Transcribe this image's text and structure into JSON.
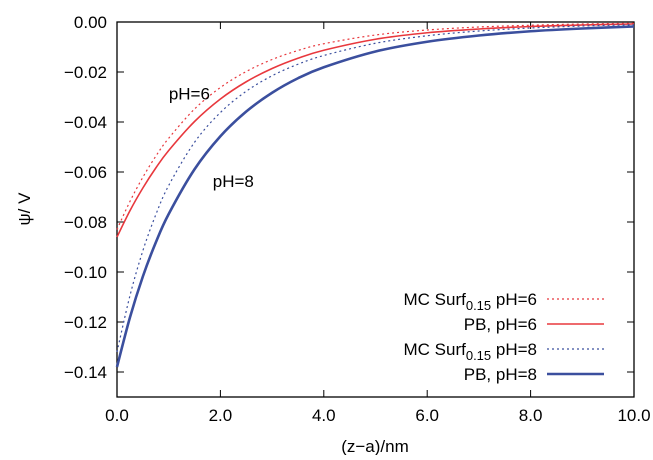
{
  "chart_data": {
    "type": "line",
    "xlabel": "(z−a)/nm",
    "ylabel": "ψ/ V",
    "xlim": [
      0.0,
      10.0
    ],
    "ylim": [
      -0.15,
      0.0
    ],
    "xticks": [
      0.0,
      2.0,
      4.0,
      6.0,
      8.0,
      10.0
    ],
    "xtick_labels": [
      "0.0",
      "2.0",
      "4.0",
      "6.0",
      "8.0",
      "10.0"
    ],
    "yticks": [
      0.0,
      -0.02,
      -0.04,
      -0.06,
      -0.08,
      -0.1,
      -0.12,
      -0.14
    ],
    "ytick_labels": [
      "0.00",
      "−0.02",
      "−0.04",
      "−0.06",
      "−0.08",
      "−0.10",
      "−0.12",
      "−0.14"
    ],
    "grid": false,
    "legend_position": "bottom-right",
    "annotations": [
      {
        "text": "pH=6",
        "x": 1.4,
        "y": -0.0285
      },
      {
        "text": "pH=8",
        "x": 2.25,
        "y": -0.0635
      }
    ],
    "series": [
      {
        "name": "MC Surf0.15 pH=6",
        "legend_main": "MC Surf",
        "legend_sub": "0.15",
        "legend_tail": " pH=6",
        "color": "#e8383d",
        "dash": "dotted",
        "width": 1.2,
        "x": [
          0,
          0.25,
          0.5,
          0.75,
          1,
          1.5,
          2,
          2.5,
          3,
          3.5,
          4,
          5,
          6,
          7,
          8,
          9,
          10
        ],
        "y": [
          -0.083,
          -0.0718,
          -0.0621,
          -0.0537,
          -0.0465,
          -0.0348,
          -0.0262,
          -0.0198,
          -0.015,
          -0.0114,
          -0.0087,
          -0.0052,
          -0.0032,
          -0.002,
          -0.0013,
          -0.0008,
          -0.0005
        ]
      },
      {
        "name": "PB, pH=6",
        "legend_main": "PB, pH=6",
        "legend_sub": "",
        "legend_tail": "",
        "color": "#e8383d",
        "dash": "solid",
        "width": 1.6,
        "x": [
          0,
          0.25,
          0.5,
          0.75,
          1,
          1.5,
          2,
          2.5,
          3,
          3.5,
          4,
          5,
          6,
          7,
          8,
          9,
          10
        ],
        "y": [
          -0.086,
          -0.0755,
          -0.0664,
          -0.0584,
          -0.0514,
          -0.0398,
          -0.0308,
          -0.0239,
          -0.0186,
          -0.0145,
          -0.0113,
          -0.0069,
          -0.0043,
          -0.0028,
          -0.0018,
          -0.0012,
          -0.0008
        ]
      },
      {
        "name": "MC Surf0.15 pH=8",
        "legend_main": "MC Surf",
        "legend_sub": "0.15",
        "legend_tail": " pH=8",
        "color": "#3b4f9e",
        "dash": "dotted",
        "width": 1.2,
        "x": [
          0,
          0.25,
          0.5,
          0.75,
          1,
          1.5,
          2,
          2.5,
          3,
          3.5,
          4,
          5,
          6,
          7,
          8,
          9,
          10
        ],
        "y": [
          -0.132,
          -0.1095,
          -0.0915,
          -0.0771,
          -0.0654,
          -0.0481,
          -0.0362,
          -0.0277,
          -0.0215,
          -0.0169,
          -0.0134,
          -0.0085,
          -0.0055,
          -0.0036,
          -0.0024,
          -0.0016,
          -0.0011
        ]
      },
      {
        "name": "PB, pH=8",
        "legend_main": "PB, pH=8",
        "legend_sub": "",
        "legend_tail": "",
        "color": "#3b4f9e",
        "dash": "solid",
        "width": 2.6,
        "x": [
          0,
          0.25,
          0.5,
          0.75,
          1,
          1.5,
          2,
          2.5,
          3,
          3.5,
          4,
          5,
          6,
          7,
          8,
          9,
          10
        ],
        "y": [
          -0.138,
          -0.1182,
          -0.1018,
          -0.0882,
          -0.0768,
          -0.0589,
          -0.0457,
          -0.0358,
          -0.0283,
          -0.0225,
          -0.0181,
          -0.0118,
          -0.0079,
          -0.0054,
          -0.0037,
          -0.0026,
          -0.0018
        ]
      }
    ]
  }
}
